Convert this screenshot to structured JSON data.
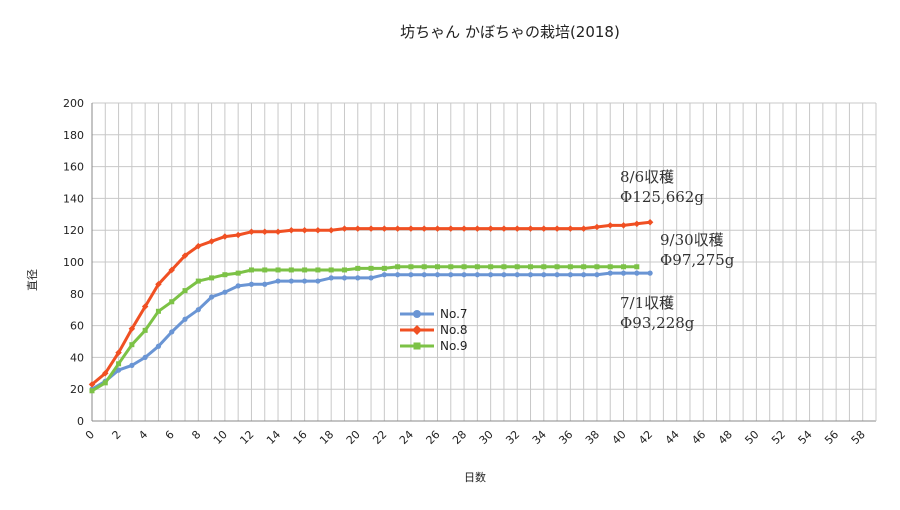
{
  "chart_data": {
    "type": "line",
    "title": "坊ちゃん かぼちゃの栽培(2018)",
    "xlabel": "日数",
    "ylabel": "直径",
    "xlim": [
      0,
      59
    ],
    "ylim": [
      0,
      200
    ],
    "x_ticks": [
      0,
      2,
      4,
      6,
      8,
      10,
      12,
      14,
      16,
      18,
      20,
      22,
      24,
      26,
      28,
      30,
      32,
      34,
      36,
      38,
      40,
      42,
      44,
      46,
      48,
      50,
      52,
      54,
      56,
      58
    ],
    "y_ticks": [
      0,
      20,
      40,
      60,
      80,
      100,
      120,
      140,
      160,
      180,
      200
    ],
    "grid": true,
    "legend_position": "center",
    "series": [
      {
        "name": "No.7",
        "color": "#6a95d4",
        "marker": "circle",
        "x": [
          0,
          1,
          2,
          3,
          4,
          5,
          6,
          7,
          8,
          9,
          10,
          11,
          12,
          13,
          14,
          15,
          16,
          17,
          18,
          19,
          20,
          21,
          22,
          23,
          24,
          25,
          26,
          27,
          28,
          29,
          30,
          31,
          32,
          33,
          34,
          35,
          36,
          37,
          38,
          39,
          40,
          41,
          42
        ],
        "y": [
          20,
          25,
          32,
          35,
          40,
          47,
          56,
          64,
          70,
          78,
          81,
          85,
          86,
          86,
          88,
          88,
          88,
          88,
          90,
          90,
          90,
          90,
          92,
          92,
          92,
          92,
          92,
          92,
          92,
          92,
          92,
          92,
          92,
          92,
          92,
          92,
          92,
          92,
          92,
          93,
          93,
          93,
          93
        ]
      },
      {
        "name": "No.8",
        "color": "#f05023",
        "marker": "diamond",
        "x": [
          0,
          1,
          2,
          3,
          4,
          5,
          6,
          7,
          8,
          9,
          10,
          11,
          12,
          13,
          14,
          15,
          16,
          17,
          18,
          19,
          20,
          21,
          22,
          23,
          24,
          25,
          26,
          27,
          28,
          29,
          30,
          31,
          32,
          33,
          34,
          35,
          36,
          37,
          38,
          39,
          40,
          41,
          42
        ],
        "y": [
          23,
          30,
          43,
          58,
          72,
          86,
          95,
          104,
          110,
          113,
          116,
          117,
          119,
          119,
          119,
          120,
          120,
          120,
          120,
          121,
          121,
          121,
          121,
          121,
          121,
          121,
          121,
          121,
          121,
          121,
          121,
          121,
          121,
          121,
          121,
          121,
          121,
          121,
          122,
          123,
          123,
          124,
          125
        ]
      },
      {
        "name": "No.9",
        "color": "#7cc246",
        "marker": "square",
        "x": [
          0,
          1,
          2,
          3,
          4,
          5,
          6,
          7,
          8,
          9,
          10,
          11,
          12,
          13,
          14,
          15,
          16,
          17,
          18,
          19,
          20,
          21,
          22,
          23,
          24,
          25,
          26,
          27,
          28,
          29,
          30,
          31,
          32,
          33,
          34,
          35,
          36,
          37,
          38,
          39,
          40,
          41
        ],
        "y": [
          19,
          24,
          36,
          48,
          57,
          69,
          75,
          82,
          88,
          90,
          92,
          93,
          95,
          95,
          95,
          95,
          95,
          95,
          95,
          95,
          96,
          96,
          96,
          97,
          97,
          97,
          97,
          97,
          97,
          97,
          97,
          97,
          97,
          97,
          97,
          97,
          97,
          97,
          97,
          97,
          97,
          97
        ]
      }
    ],
    "annotations": [
      {
        "id": "no8",
        "line1": "8/6収穫",
        "line2": "Φ125,662g"
      },
      {
        "id": "no9",
        "line1": "9/30収穫",
        "line2": "Φ97,275g"
      },
      {
        "id": "no7",
        "line1": "7/1収穫",
        "line2": "Φ93,228g"
      }
    ]
  }
}
